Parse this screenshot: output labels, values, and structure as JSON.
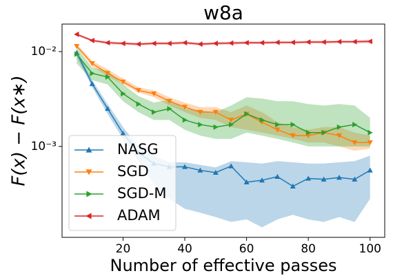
{
  "chart_data": {
    "type": "line",
    "title": "w8a",
    "x_label": "Number of effective passes",
    "y_label": "F(x) − F(x∗)",
    "y_scale": "log",
    "legend": "lower left",
    "xlim": [
      0.25,
      104.75
    ],
    "ylim": [
      0.00011,
      0.0195
    ],
    "xticks": [
      20,
      40,
      60,
      80,
      100
    ],
    "yticks": [
      {
        "value": 0.01,
        "label": "10⁻²"
      },
      {
        "value": 0.001,
        "label": "10⁻³"
      }
    ],
    "x": [
      5,
      10,
      15,
      20,
      25,
      30,
      35,
      40,
      45,
      50,
      55,
      60,
      65,
      70,
      75,
      80,
      85,
      90,
      95,
      100
    ],
    "series": [
      {
        "name": "NASG",
        "color": "#1f77b4",
        "marker": "up",
        "values": [
          0.0097,
          0.00457,
          0.0025,
          0.00137,
          0.00086,
          0.00066,
          0.00061,
          0.00061,
          0.00056,
          0.00053,
          0.00062,
          0.00042,
          0.00044,
          0.00048,
          0.00038,
          0.00046,
          0.00045,
          0.00047,
          0.00045,
          0.00056
        ],
        "lower": [
          0.0088,
          0.0042,
          0.0022,
          0.0012,
          0.0007,
          0.0004,
          0.00028,
          0.00022,
          0.0002,
          0.00018,
          0.00016,
          0.00017,
          0.00014,
          0.00017,
          0.00019,
          0.00017,
          0.00016,
          0.00018,
          0.00016,
          0.00028
        ],
        "upper": [
          0.0105,
          0.005,
          0.0028,
          0.0016,
          0.001,
          0.0008,
          0.00068,
          0.00068,
          0.00064,
          0.0006,
          0.0007,
          0.00068,
          0.00066,
          0.0007,
          0.00068,
          0.00066,
          0.00066,
          0.00068,
          0.0007,
          0.0008
        ]
      },
      {
        "name": "SGD",
        "color": "#ff7f0e",
        "marker": "down",
        "values": [
          0.0114,
          0.0075,
          0.0059,
          0.0048,
          0.0039,
          0.0036,
          0.003,
          0.0026,
          0.0023,
          0.0023,
          0.0019,
          0.0022,
          0.0018,
          0.0015,
          0.0013,
          0.0013,
          0.0014,
          0.0013,
          0.0011,
          0.0011
        ],
        "lower": [
          0.011,
          0.007,
          0.0055,
          0.0045,
          0.0037,
          0.0033,
          0.0027,
          0.0023,
          0.002,
          0.0019,
          0.0016,
          0.0015,
          0.0014,
          0.0013,
          0.0012,
          0.0011,
          0.0011,
          0.001,
          0.0009,
          0.00095
        ],
        "upper": [
          0.012,
          0.008,
          0.0065,
          0.0052,
          0.0042,
          0.0039,
          0.0033,
          0.0029,
          0.0026,
          0.0026,
          0.0023,
          0.0027,
          0.0023,
          0.0018,
          0.0016,
          0.0015,
          0.0016,
          0.0016,
          0.0014,
          0.0013
        ]
      },
      {
        "name": "SGD-M",
        "color": "#2ca02c",
        "marker": "right",
        "values": [
          0.0094,
          0.0059,
          0.0054,
          0.0036,
          0.0028,
          0.0023,
          0.0025,
          0.0019,
          0.0017,
          0.0016,
          0.0017,
          0.0022,
          0.0019,
          0.0017,
          0.0017,
          0.0014,
          0.0014,
          0.0016,
          0.0017,
          0.0014
        ],
        "lower": [
          0.0075,
          0.005,
          0.0045,
          0.003,
          0.0023,
          0.0019,
          0.0019,
          0.0015,
          0.0013,
          0.0012,
          0.0012,
          0.0014,
          0.0013,
          0.0012,
          0.0011,
          0.001,
          0.001,
          0.001,
          0.001,
          0.001
        ],
        "upper": [
          0.011,
          0.0068,
          0.0063,
          0.0045,
          0.0034,
          0.0029,
          0.0031,
          0.0025,
          0.0024,
          0.0023,
          0.0027,
          0.0033,
          0.0032,
          0.003,
          0.003,
          0.0028,
          0.0027,
          0.0028,
          0.0027,
          0.002
        ]
      },
      {
        "name": "ADAM",
        "color": "#d62728",
        "marker": "left",
        "values": [
          0.0152,
          0.0131,
          0.0124,
          0.0122,
          0.012,
          0.0122,
          0.0122,
          0.0124,
          0.012,
          0.0122,
          0.0123,
          0.0124,
          0.0124,
          0.0125,
          0.0125,
          0.0126,
          0.0126,
          0.0127,
          0.0127,
          0.0128
        ],
        "lower": [
          0.0148,
          0.0127,
          0.012,
          0.0118,
          0.0116,
          0.0118,
          0.0118,
          0.012,
          0.0116,
          0.0118,
          0.0119,
          0.012,
          0.012,
          0.0121,
          0.0121,
          0.0122,
          0.0122,
          0.0123,
          0.0123,
          0.0123
        ],
        "upper": [
          0.0156,
          0.0135,
          0.0128,
          0.0126,
          0.0124,
          0.0126,
          0.0126,
          0.0128,
          0.0124,
          0.0126,
          0.0127,
          0.0128,
          0.0128,
          0.0129,
          0.0129,
          0.013,
          0.013,
          0.0131,
          0.0131,
          0.0134
        ]
      }
    ]
  }
}
